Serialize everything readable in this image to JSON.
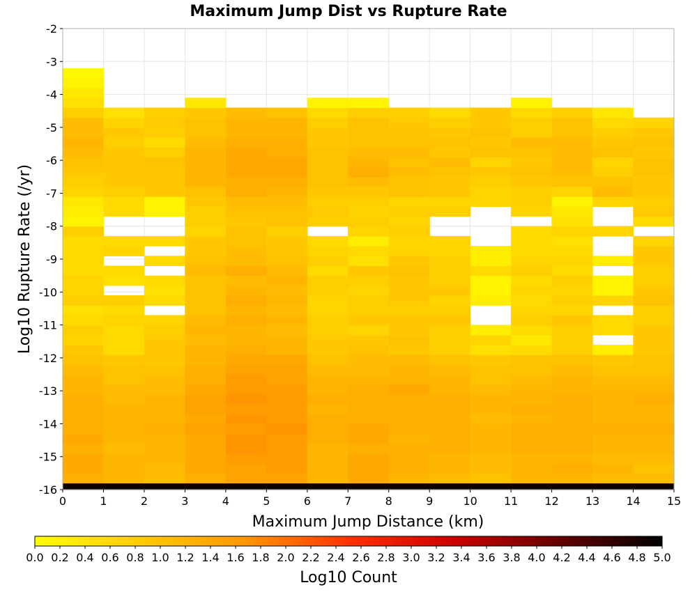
{
  "chart_data": {
    "type": "heatmap",
    "title": "Maximum Jump Dist vs Rupture Rate",
    "xlabel": "Maximum Jump Distance (km)",
    "ylabel": "Log10 Rupture Rate (/yr)",
    "xlim": [
      0,
      15
    ],
    "ylim": [
      -16,
      -2
    ],
    "x_ticks": [
      "0",
      "1",
      "2",
      "3",
      "4",
      "5",
      "6",
      "7",
      "8",
      "9",
      "10",
      "11",
      "12",
      "13",
      "14",
      "15"
    ],
    "y_ticks": [
      "-2",
      "-3",
      "-4",
      "-5",
      "-6",
      "-7",
      "-8",
      "-9",
      "-10",
      "-11",
      "-12",
      "-13",
      "-14",
      "-15",
      "-16"
    ],
    "x_bin_width": 1,
    "y_bin_width": 0.3,
    "y_bin_start": -16.1,
    "grid": true,
    "colorbar": {
      "label": "Log10 Count",
      "min": 0.0,
      "max": 5.0,
      "ticks": [
        "0.0",
        "0.2",
        "0.4",
        "0.6",
        "0.8",
        "1.0",
        "1.2",
        "1.4",
        "1.6",
        "1.8",
        "2.0",
        "2.2",
        "2.4",
        "2.6",
        "2.8",
        "3.0",
        "3.2",
        "3.4",
        "3.6",
        "3.8",
        "4.0",
        "4.2",
        "4.4",
        "4.6",
        "4.8",
        "5.0"
      ],
      "stops": [
        "#ffff00",
        "#ffcc00",
        "#ff9900",
        "#ff3300",
        "#cc0000",
        "#660000",
        "#000000"
      ]
    },
    "z": [
      [
        4.9,
        4.9,
        4.9,
        4.9,
        4.9,
        4.9,
        4.9,
        4.9,
        4.9,
        4.9,
        4.9,
        4.9,
        4.9,
        4.9,
        4.9
      ],
      [
        1.3,
        1.2,
        1.1,
        1.3,
        1.5,
        1.5,
        1.2,
        1.4,
        1.2,
        1.1,
        1.0,
        1.2,
        1.2,
        1.1,
        1.1
      ],
      [
        1.4,
        1.2,
        1.1,
        1.4,
        1.5,
        1.6,
        1.2,
        1.4,
        1.3,
        1.2,
        1.1,
        1.2,
        1.3,
        1.2,
        1.0
      ],
      [
        1.4,
        1.2,
        1.2,
        1.4,
        1.6,
        1.6,
        1.2,
        1.4,
        1.3,
        1.2,
        1.1,
        1.2,
        1.2,
        1.1,
        1.1
      ],
      [
        1.3,
        1.1,
        1.2,
        1.4,
        1.7,
        1.6,
        1.2,
        1.3,
        1.3,
        1.3,
        1.2,
        1.3,
        1.3,
        1.2,
        1.2
      ],
      [
        1.4,
        1.2,
        1.2,
        1.4,
        1.7,
        1.6,
        1.3,
        1.4,
        1.2,
        1.3,
        1.2,
        1.3,
        1.3,
        1.2,
        1.2
      ],
      [
        1.3,
        1.2,
        1.3,
        1.5,
        1.6,
        1.7,
        1.3,
        1.4,
        1.3,
        1.3,
        1.2,
        1.3,
        1.3,
        1.3,
        1.3
      ],
      [
        1.3,
        1.2,
        1.2,
        1.4,
        1.7,
        1.6,
        1.3,
        1.3,
        1.3,
        1.3,
        1.1,
        1.2,
        1.3,
        1.2,
        1.2
      ],
      [
        1.3,
        1.2,
        1.2,
        1.5,
        1.6,
        1.6,
        1.2,
        1.3,
        1.3,
        1.3,
        1.2,
        1.3,
        1.3,
        1.2,
        1.2
      ],
      [
        1.3,
        1.1,
        1.2,
        1.5,
        1.7,
        1.6,
        1.3,
        1.3,
        1.3,
        1.3,
        1.2,
        1.2,
        1.3,
        1.2,
        1.3
      ],
      [
        1.2,
        1.1,
        1.1,
        1.4,
        1.6,
        1.6,
        1.2,
        1.3,
        1.4,
        1.2,
        1.1,
        1.2,
        1.2,
        1.2,
        1.2
      ],
      [
        1.2,
        1.0,
        1.1,
        1.3,
        1.6,
        1.5,
        1.2,
        1.2,
        1.2,
        1.2,
        1.0,
        1.1,
        1.2,
        1.1,
        1.1
      ],
      [
        1.1,
        1.0,
        1.0,
        1.3,
        1.5,
        1.5,
        1.1,
        1.1,
        1.2,
        1.1,
        1.0,
        1.0,
        1.1,
        1.0,
        1.0
      ],
      [
        1.0,
        0.9,
        0.9,
        1.2,
        1.4,
        1.4,
        1.0,
        1.1,
        1.1,
        1.0,
        0.9,
        1.0,
        1.0,
        0.9,
        1.0
      ],
      [
        0.9,
        0.6,
        0.9,
        1.2,
        1.3,
        1.2,
        0.9,
        1.0,
        0.9,
        0.8,
        0.5,
        0.6,
        0.8,
        0.3,
        0.9
      ],
      [
        0.7,
        0.6,
        0.9,
        1.1,
        1.2,
        1.2,
        0.9,
        0.9,
        1.0,
        0.8,
        0.7,
        0.4,
        0.8,
        null,
        0.9
      ],
      [
        0.8,
        0.6,
        0.8,
        1.2,
        1.2,
        1.1,
        0.8,
        0.7,
        0.9,
        0.8,
        0.3,
        0.6,
        0.8,
        0.6,
        0.9
      ],
      [
        0.6,
        0.7,
        0.7,
        1.1,
        1.3,
        1.2,
        0.8,
        0.9,
        0.9,
        0.9,
        null,
        0.8,
        0.9,
        0.6,
        0.8
      ],
      [
        0.5,
        0.6,
        null,
        1.0,
        1.2,
        1.1,
        0.7,
        0.8,
        0.8,
        0.8,
        null,
        0.7,
        0.7,
        null,
        0.8
      ],
      [
        0.8,
        0.8,
        0.6,
        1.0,
        1.3,
        1.2,
        0.7,
        0.8,
        0.9,
        0.7,
        0.3,
        0.6,
        0.8,
        0.7,
        1.0
      ],
      [
        0.7,
        null,
        0.5,
        1.0,
        1.2,
        1.1,
        0.8,
        0.7,
        0.9,
        0.9,
        0.2,
        0.7,
        0.7,
        0.2,
        0.9
      ],
      [
        0.7,
        0.5,
        0.6,
        1.0,
        1.1,
        1.2,
        0.8,
        0.8,
        0.9,
        0.8,
        0.2,
        0.6,
        0.8,
        0.2,
        0.8
      ],
      [
        0.6,
        0.6,
        null,
        1.1,
        1.3,
        1.1,
        0.6,
        0.9,
        1.0,
        0.8,
        0.6,
        0.8,
        0.6,
        null,
        0.8
      ],
      [
        0.6,
        null,
        0.6,
        1.0,
        1.1,
        1.0,
        0.8,
        0.5,
        0.9,
        0.8,
        0.3,
        0.7,
        0.7,
        0.3,
        0.9
      ],
      [
        0.6,
        0.7,
        null,
        0.9,
        1.1,
        0.9,
        0.7,
        0.6,
        0.7,
        0.7,
        0.3,
        0.6,
        0.6,
        null,
        0.9
      ],
      [
        0.6,
        0.6,
        0.6,
        0.9,
        1.0,
        0.9,
        0.6,
        0.3,
        0.7,
        0.7,
        null,
        0.6,
        0.5,
        null,
        0.7
      ],
      [
        0.8,
        null,
        null,
        0.7,
        1.0,
        0.8,
        null,
        0.7,
        0.8,
        null,
        null,
        0.6,
        0.7,
        0.7,
        null
      ],
      [
        0.2,
        null,
        null,
        0.8,
        0.9,
        1.0,
        0.8,
        0.8,
        0.7,
        null,
        null,
        null,
        0.5,
        null,
        0.6
      ],
      [
        0.3,
        0.6,
        0.2,
        0.8,
        1.0,
        1.0,
        0.9,
        0.7,
        0.8,
        0.8,
        null,
        0.7,
        0.4,
        null,
        0.9
      ],
      [
        0.4,
        0.6,
        0.2,
        0.9,
        1.1,
        1.1,
        0.8,
        0.8,
        0.7,
        0.7,
        0.7,
        0.8,
        0.2,
        0.7,
        0.8
      ],
      [
        0.7,
        0.8,
        0.9,
        1.0,
        1.3,
        1.2,
        0.9,
        0.9,
        1.0,
        0.9,
        0.7,
        0.8,
        0.7,
        1.1,
        0.9
      ],
      [
        0.8,
        0.9,
        0.9,
        1.2,
        1.3,
        1.3,
        1.0,
        1.1,
        1.0,
        0.9,
        0.8,
        0.9,
        1.0,
        1.0,
        0.9
      ],
      [
        0.9,
        0.9,
        0.9,
        1.2,
        1.4,
        1.4,
        1.0,
        1.3,
        1.1,
        1.0,
        0.9,
        1.0,
        1.1,
        0.8,
        1.0
      ],
      [
        1.0,
        0.9,
        1.0,
        1.2,
        1.4,
        1.4,
        1.0,
        1.2,
        1.0,
        1.1,
        0.7,
        0.9,
        1.1,
        0.7,
        1.0
      ],
      [
        1.1,
        0.9,
        0.8,
        1.2,
        1.4,
        1.3,
        1.0,
        1.1,
        1.1,
        0.9,
        1.0,
        1.0,
        1.1,
        1.0,
        0.9
      ],
      [
        1.2,
        0.8,
        0.6,
        1.1,
        1.3,
        1.3,
        0.9,
        1.0,
        1.0,
        1.0,
        0.9,
        1.1,
        1.1,
        0.9,
        1.0
      ],
      [
        1.1,
        0.9,
        0.8,
        1.0,
        1.2,
        1.2,
        0.9,
        1.0,
        1.0,
        0.9,
        1.0,
        0.8,
        1.0,
        0.8,
        0.9
      ],
      [
        1.1,
        0.7,
        0.9,
        1.0,
        1.2,
        1.2,
        0.8,
        1.0,
        0.9,
        0.8,
        0.9,
        0.8,
        1.0,
        0.6,
        0.7
      ],
      [
        0.8,
        0.5,
        0.8,
        0.9,
        1.1,
        1.0,
        0.6,
        0.8,
        0.8,
        0.6,
        0.9,
        0.6,
        0.8,
        0.4,
        null
      ],
      [
        0.5,
        null,
        null,
        0.4,
        null,
        null,
        0.2,
        0.2,
        null,
        null,
        null,
        0.2,
        null,
        null,
        null
      ],
      [
        0.4,
        null,
        null,
        null,
        null,
        null,
        null,
        null,
        null,
        null,
        null,
        null,
        null,
        null,
        null
      ],
      [
        0.2,
        null,
        null,
        null,
        null,
        null,
        null,
        null,
        null,
        null,
        null,
        null,
        null,
        null,
        null
      ],
      [
        0.1,
        null,
        null,
        null,
        null,
        null,
        null,
        null,
        null,
        null,
        null,
        null,
        null,
        null,
        null
      ]
    ]
  }
}
